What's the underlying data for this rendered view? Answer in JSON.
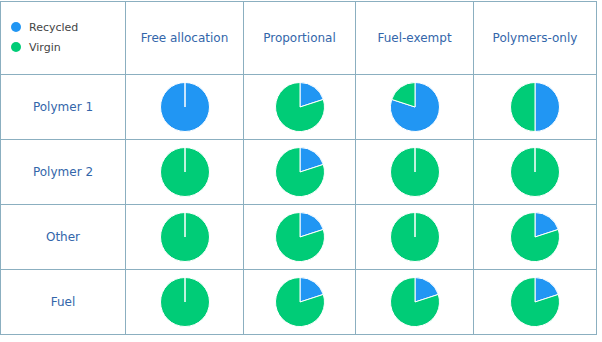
{
  "chart_data": {
    "type": "pie",
    "categories": [
      "Recycled",
      "Virgin"
    ],
    "colors": [
      "#2196F3",
      "#00CC77"
    ],
    "legend": "top-left",
    "columns": [
      "Free allocation",
      "Proportional",
      "Fuel-exempt",
      "Polymers-only"
    ],
    "rows": [
      {
        "label": "Polymer 1",
        "values": [
          [
            100,
            0
          ],
          [
            20,
            80
          ],
          [
            80,
            20
          ],
          [
            50,
            50
          ]
        ]
      },
      {
        "label": "Polymer 2",
        "values": [
          [
            0,
            100
          ],
          [
            20,
            80
          ],
          [
            0,
            100
          ],
          [
            0,
            100
          ]
        ]
      },
      {
        "label": "Other",
        "values": [
          [
            0,
            100
          ],
          [
            20,
            80
          ],
          [
            0,
            100
          ],
          [
            20,
            80
          ]
        ]
      },
      {
        "label": "Fuel",
        "values": [
          [
            0,
            100
          ],
          [
            20,
            80
          ],
          [
            20,
            80
          ],
          [
            20,
            80
          ]
        ]
      }
    ]
  }
}
